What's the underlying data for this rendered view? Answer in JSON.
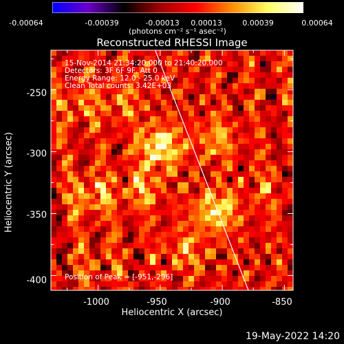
{
  "colorbar": {
    "ticks": [
      "-0.00064",
      "-0.00039",
      "-0.00013",
      "0.00013",
      "0.00039",
      "0.00064"
    ],
    "unit": "(photons cm⁻² s⁻¹ asec⁻²)"
  },
  "title": "Reconstructed RHESSI Image",
  "annotations": [
    "15-Nov-2014 21:34:20.000 to 21:40:20.000",
    "Detectors: 3F 6F 9F, Att 0",
    "Energy Range: 12.0 - 25.0 keV",
    "Clean    Total counts: 3.42E+03"
  ],
  "peak_label": "Position of Peak = [-951,-296]",
  "footer": "19-May-2022 14:20",
  "chart_data": {
    "type": "heatmap",
    "title": "Reconstructed RHESSI Image",
    "xlabel": "Heliocentric X (arcsec)",
    "ylabel": "Heliocentric Y (arcsec)",
    "xlim": [
      -1038,
      -843
    ],
    "ylim": [
      -412,
      -218
    ],
    "xticks": [
      -1000,
      -950,
      -900,
      -850
    ],
    "yticks": [
      -250,
      -300,
      -350,
      -400
    ],
    "colorbar_range": [
      -0.00064,
      0.00064
    ],
    "colormap": [
      "#0000ff",
      "#6a00c8",
      "#000000",
      "#a00000",
      "#ff0000",
      "#ff8c00",
      "#ffff60",
      "#ffffff"
    ],
    "limb_line": [
      [
        -954,
        -218
      ],
      [
        -879,
        -412
      ]
    ],
    "bright_regions": [
      {
        "x": -950,
        "y": -296,
        "value": 0.00064
      },
      {
        "x": -905,
        "y": -348,
        "value": 0.00055
      },
      {
        "x": -1005,
        "y": -335,
        "value": 0.0004
      },
      {
        "x": -965,
        "y": -330,
        "value": 0.00035
      },
      {
        "x": -905,
        "y": -290,
        "value": 0.00033
      },
      {
        "x": -1015,
        "y": -262,
        "value": 0.00026
      },
      {
        "x": -930,
        "y": -380,
        "value": 0.0003
      },
      {
        "x": -980,
        "y": -260,
        "value": 0.00024
      },
      {
        "x": -865,
        "y": -330,
        "value": 0.00018
      },
      {
        "x": -1000,
        "y": -390,
        "value": 0.00015
      }
    ]
  }
}
